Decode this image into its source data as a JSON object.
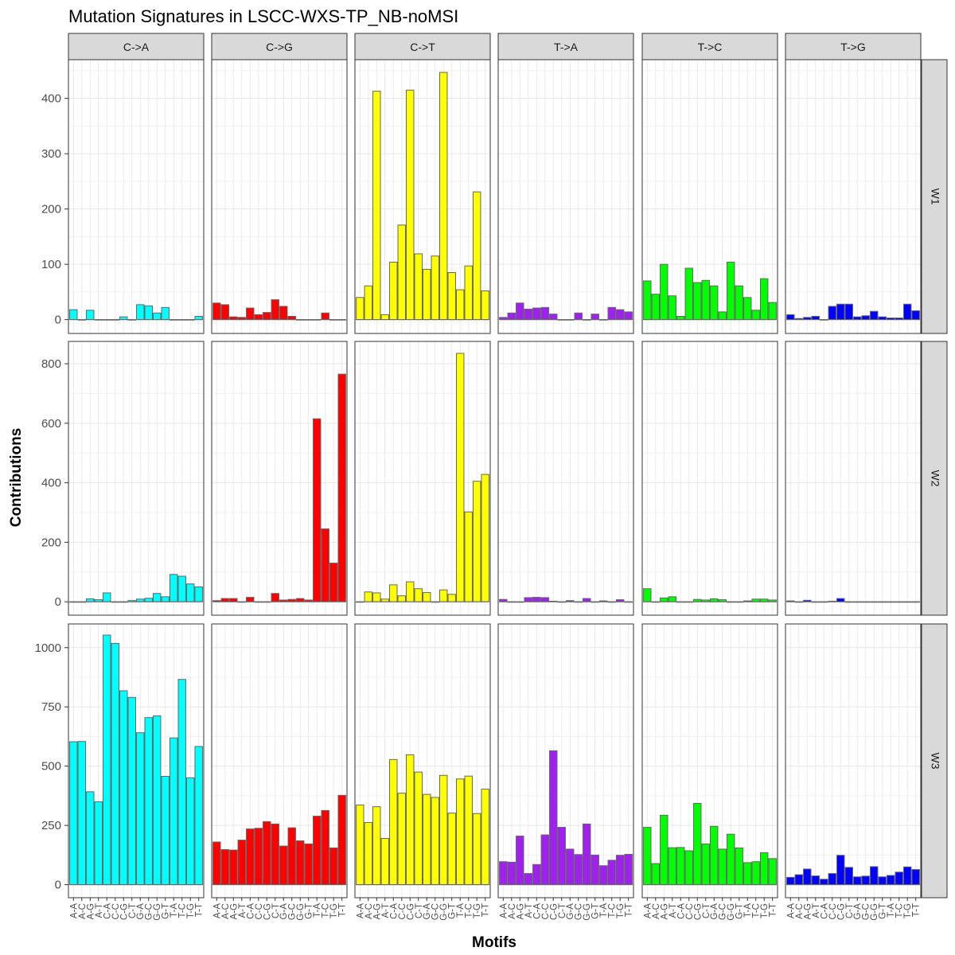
{
  "chart_data": {
    "type": "bar",
    "title": "Mutation Signatures in LSCC-WXS-TP_NB-noMSI",
    "xlabel": "Motifs",
    "ylabel": "Contributions",
    "grid": true,
    "facet_columns": [
      "C->A",
      "C->G",
      "C->T",
      "T->A",
      "T->C",
      "T->G"
    ],
    "facet_rows": [
      "W1",
      "W2",
      "W3"
    ],
    "motifs": [
      "A-A",
      "A-C",
      "A-G",
      "A-T",
      "C-A",
      "C-C",
      "C-G",
      "C-T",
      "G-A",
      "G-C",
      "G-G",
      "G-T",
      "T-A",
      "T-C",
      "T-G",
      "T-T"
    ],
    "colors": {
      "C->A": "#00FFFF",
      "C->G": "#FF0000",
      "C->T": "#FFFF00",
      "T->A": "#A020F0",
      "T->C": "#00FF00",
      "T->G": "#0000FF"
    },
    "rows": [
      {
        "name": "W1",
        "ylim": [
          -25,
          470
        ],
        "yticks": [
          0,
          100,
          200,
          300,
          400
        ],
        "series": [
          {
            "name": "C->A",
            "values": [
              18,
              0,
              17,
              0,
              0,
              0,
              5,
              0,
              27,
              25,
              12,
              22,
              0,
              0,
              0,
              6
            ]
          },
          {
            "name": "C->G",
            "values": [
              30,
              27,
              5,
              4,
              21,
              9,
              13,
              36,
              24,
              6,
              0,
              0,
              0,
              12,
              0,
              0
            ]
          },
          {
            "name": "C->T",
            "values": [
              40,
              61,
              413,
              9,
              104,
              171,
              415,
              119,
              91,
              115,
              447,
              85,
              54,
              97,
              231,
              52
            ]
          },
          {
            "name": "T->A",
            "values": [
              4,
              12,
              30,
              19,
              21,
              22,
              10,
              0,
              0,
              12,
              0,
              10,
              0,
              22,
              18,
              14
            ]
          },
          {
            "name": "T->C",
            "values": [
              70,
              46,
              100,
              43,
              6,
              93,
              67,
              71,
              61,
              14,
              104,
              61,
              40,
              17,
              74,
              31
            ]
          },
          {
            "name": "T->G",
            "values": [
              9,
              2,
              4,
              6,
              0,
              24,
              28,
              28,
              5,
              7,
              15,
              5,
              3,
              3,
              28,
              16
            ]
          }
        ]
      },
      {
        "name": "W2",
        "ylim": [
          -45,
          875
        ],
        "yticks": [
          0,
          200,
          400,
          600,
          800
        ],
        "series": [
          {
            "name": "C->A",
            "values": [
              0,
              0,
              10,
              7,
              30,
              0,
              0,
              4,
              9,
              12,
              28,
              17,
              92,
              86,
              60,
              50
            ]
          },
          {
            "name": "C->G",
            "values": [
              4,
              11,
              11,
              0,
              15,
              0,
              0,
              28,
              6,
              8,
              11,
              6,
              615,
              245,
              130,
              765
            ]
          },
          {
            "name": "C->T",
            "values": [
              0,
              33,
              30,
              9,
              57,
              20,
              67,
              44,
              31,
              0,
              40,
              25,
              835,
              302,
              405,
              428
            ]
          },
          {
            "name": "T->A",
            "values": [
              8,
              0,
              0,
              14,
              15,
              14,
              2,
              0,
              4,
              0,
              11,
              0,
              3,
              0,
              7,
              0
            ]
          },
          {
            "name": "T->C",
            "values": [
              44,
              0,
              13,
              17,
              0,
              0,
              8,
              6,
              10,
              7,
              0,
              0,
              3,
              9,
              9,
              6
            ]
          },
          {
            "name": "T->G",
            "values": [
              3,
              0,
              5,
              0,
              0,
              2,
              11,
              0,
              0,
              0,
              0,
              0,
              0,
              0,
              0,
              0
            ]
          }
        ]
      },
      {
        "name": "W3",
        "ylim": [
          -55,
          1100
        ],
        "yticks": [
          0,
          250,
          500,
          750,
          1000
        ],
        "series": [
          {
            "name": "C->A",
            "values": [
              603,
              604,
              392,
              350,
              1053,
              1018,
              818,
              790,
              641,
              705,
              712,
              457,
              619,
              866,
              451,
              583
            ]
          },
          {
            "name": "C->G",
            "values": [
              180,
              148,
              146,
              188,
              235,
              238,
              266,
              256,
              163,
              240,
              185,
              172,
              289,
              313,
              155,
              377
            ]
          },
          {
            "name": "C->T",
            "values": [
              336,
              262,
              329,
              195,
              528,
              386,
              548,
              475,
              381,
              368,
              461,
              302,
              446,
              458,
              300,
              403
            ]
          },
          {
            "name": "T->A",
            "values": [
              97,
              95,
              205,
              47,
              85,
              210,
              565,
              242,
              150,
              127,
              256,
              125,
              80,
              103,
              124,
              128
            ]
          },
          {
            "name": "T->C",
            "values": [
              242,
              89,
              293,
              156,
              157,
              143,
              343,
              172,
              246,
              150,
              213,
              155,
              93,
              97,
              135,
              110
            ]
          },
          {
            "name": "T->G",
            "values": [
              31,
              42,
              66,
              37,
              23,
              47,
              124,
              73,
              33,
              36,
              76,
              33,
              39,
              53,
              75,
              64
            ]
          }
        ]
      }
    ]
  }
}
